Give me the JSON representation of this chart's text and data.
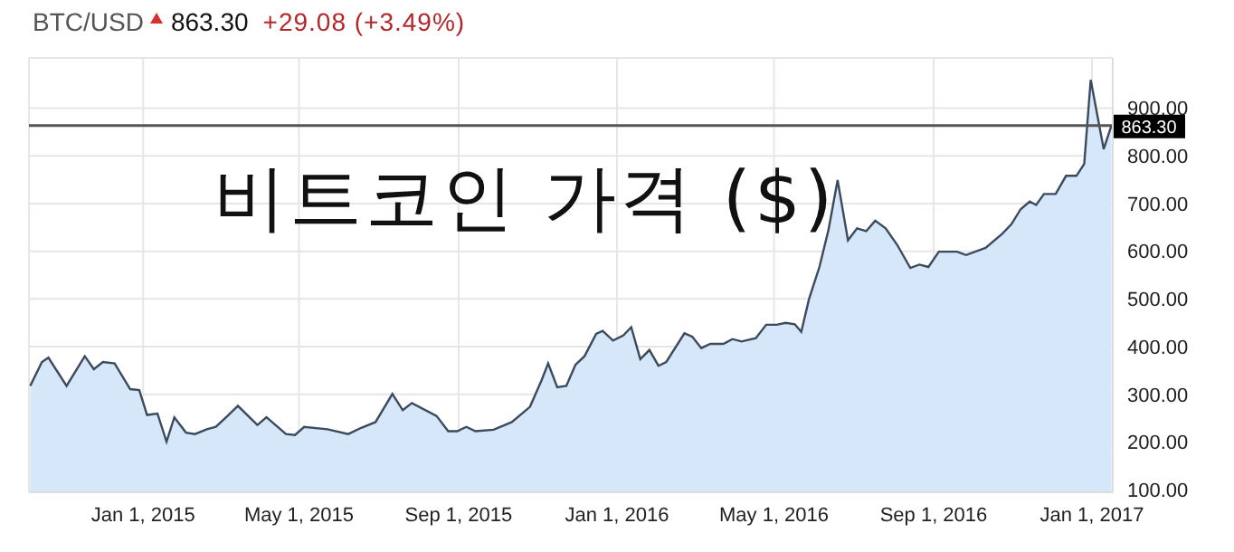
{
  "chart_data": {
    "type": "area",
    "title": "비트코인 가격 ($)",
    "subtitle": "BTC/USD",
    "annotations": [
      "863.30",
      "+29.08 (+3.49%)"
    ],
    "x": [
      "2014-10-06",
      "2014-10-15",
      "2014-10-20",
      "2014-11-03",
      "2014-11-17",
      "2014-11-24",
      "2014-12-01",
      "2014-12-10",
      "2014-12-22",
      "2014-12-29",
      "2015-01-04",
      "2015-01-12",
      "2015-01-19",
      "2015-01-25",
      "2015-02-03",
      "2015-02-10",
      "2015-02-19",
      "2015-02-26",
      "2015-03-07",
      "2015-03-15",
      "2015-03-30",
      "2015-04-06",
      "2015-04-21",
      "2015-04-28",
      "2015-05-05",
      "2015-05-23",
      "2015-06-08",
      "2015-06-18",
      "2015-06-29",
      "2015-07-12",
      "2015-07-20",
      "2015-07-27",
      "2015-08-15",
      "2015-08-24",
      "2015-08-31",
      "2015-09-07",
      "2015-09-14",
      "2015-09-28",
      "2015-10-12",
      "2015-10-26",
      "2015-11-04",
      "2015-11-09",
      "2015-11-16",
      "2015-11-23",
      "2015-11-30",
      "2015-12-07",
      "2015-12-16",
      "2015-12-21",
      "2015-12-29",
      "2016-01-06",
      "2016-01-12",
      "2016-01-19",
      "2016-01-26",
      "2016-02-02",
      "2016-02-08",
      "2016-02-22",
      "2016-02-28",
      "2016-03-06",
      "2016-03-13",
      "2016-03-23",
      "2016-03-30",
      "2016-04-06",
      "2016-04-17",
      "2016-04-25",
      "2016-05-03",
      "2016-05-10",
      "2016-05-17",
      "2016-05-22",
      "2016-05-28",
      "2016-06-05",
      "2016-06-12",
      "2016-06-19",
      "2016-06-27",
      "2016-07-04",
      "2016-07-11",
      "2016-07-18",
      "2016-07-26",
      "2016-08-04",
      "2016-08-14",
      "2016-08-21",
      "2016-08-28",
      "2016-09-05",
      "2016-09-19",
      "2016-09-26",
      "2016-10-11",
      "2016-10-24",
      "2016-10-31",
      "2016-11-07",
      "2016-11-14",
      "2016-11-19",
      "2016-11-25",
      "2016-12-04",
      "2016-12-12",
      "2016-12-20",
      "2016-12-26",
      "2016-12-31",
      "2017-01-10",
      "2017-01-16"
    ],
    "series": [
      {
        "color": "#3b4a5c",
        "values": [
          318,
          368,
          377,
          318,
          380,
          353,
          368,
          365,
          311,
          309,
          257,
          260,
          201,
          252,
          220,
          217,
          227,
          232,
          255,
          276,
          236,
          252,
          217,
          215,
          232,
          227,
          217,
          230,
          242,
          301,
          267,
          282,
          255,
          223,
          223,
          232,
          223,
          226,
          242,
          274,
          330,
          365,
          315,
          318,
          362,
          380,
          427,
          433,
          413,
          424,
          441,
          374,
          393,
          360,
          368,
          428,
          421,
          397,
          406,
          406,
          416,
          411,
          418,
          446,
          446,
          450,
          447,
          431,
          500,
          567,
          645,
          749,
          623,
          648,
          642,
          664,
          648,
          613,
          565,
          572,
          567,
          599,
          599,
          592,
          607,
          637,
          657,
          688,
          704,
          697,
          720,
          720,
          758,
          758,
          783,
          959,
          814,
          863.3
        ]
      }
    ],
    "xlim": [
      "2014-10-05",
      "2017-01-17"
    ],
    "xticks": [
      {
        "value": "2015-01-01",
        "label": "Jan 1, 2015"
      },
      {
        "value": "2015-05-01",
        "label": "May 1, 2015"
      },
      {
        "value": "2015-09-01",
        "label": "Sep 1, 2015"
      },
      {
        "value": "2016-01-01",
        "label": "Jan 1, 2016"
      },
      {
        "value": "2016-05-01",
        "label": "May 1, 2016"
      },
      {
        "value": "2016-09-01",
        "label": "Sep 1, 2016"
      },
      {
        "value": "2017-01-01",
        "label": "Jan 1, 2017"
      }
    ],
    "ylim": [
      95,
      1005
    ],
    "yticks": [
      {
        "value": 100,
        "label": "100.00"
      },
      {
        "value": 200,
        "label": "200.00"
      },
      {
        "value": 300,
        "label": "300.00"
      },
      {
        "value": 400,
        "label": "400.00"
      },
      {
        "value": 500,
        "label": "500.00"
      },
      {
        "value": 600,
        "label": "600.00"
      },
      {
        "value": 700,
        "label": "700.00"
      },
      {
        "value": 800,
        "label": "800.00"
      },
      {
        "value": 900,
        "label": "900.00"
      }
    ],
    "ref_lines": [
      {
        "axis": "y",
        "value": 863.3,
        "label": "863.30",
        "color": "#555555"
      }
    ],
    "grid": true
  }
}
